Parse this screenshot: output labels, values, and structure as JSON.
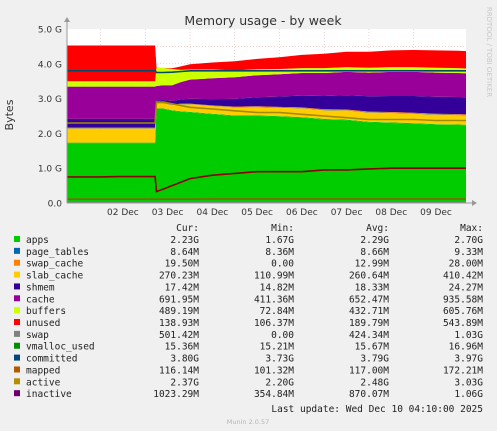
{
  "chart_data": {
    "type": "area",
    "title": "Memory usage - by week",
    "ylabel": "Bytes",
    "side_label": "RRDTOOL / TOBI OETIKER",
    "y_ticks": [
      "0.0",
      "1.0 G",
      "2.0 G",
      "3.0 G",
      "4.0 G",
      "5.0 G"
    ],
    "ylim": [
      0,
      5.0
    ],
    "y_unit": "G",
    "x_ticks": [
      "02 Dec",
      "03 Dec",
      "04 Dec",
      "05 Dec",
      "06 Dec",
      "07 Dec",
      "08 Dec",
      "09 Dec"
    ],
    "x_tick_days": [
      2,
      3,
      4,
      5,
      6,
      7,
      8,
      9
    ],
    "x_range_days": [
      1.25,
      10.17
    ],
    "grid": true,
    "x_days": [
      1.25,
      1.6,
      2.0,
      2.4,
      2.8,
      3.1,
      3.22,
      3.25,
      3.4,
      3.6,
      3.8,
      4.0,
      4.5,
      5.0,
      5.5,
      6.0,
      6.5,
      7.0,
      7.5,
      8.0,
      8.5,
      9.0,
      9.5,
      10.0,
      10.17
    ],
    "stack_order": [
      "apps",
      "shmem",
      "slab_cache",
      "page_tables",
      "swap_cache",
      "buffers",
      "cache",
      "unused",
      "swap"
    ],
    "series": [
      {
        "name": "apps",
        "color": "#00cc00",
        "stacked": true,
        "values": [
          1.72,
          1.72,
          1.72,
          1.72,
          1.72,
          1.72,
          1.72,
          2.7,
          2.7,
          2.65,
          2.62,
          2.6,
          2.55,
          2.5,
          2.5,
          2.48,
          2.45,
          2.4,
          2.38,
          2.32,
          2.3,
          2.28,
          2.25,
          2.24,
          2.23
        ]
      },
      {
        "name": "shmem",
        "color": "#00c000",
        "stacked": true,
        "values": [
          0.017,
          0.017,
          0.017,
          0.017,
          0.017,
          0.017,
          0.017,
          0.017,
          0.017,
          0.017,
          0.017,
          0.017,
          0.017,
          0.017,
          0.017,
          0.017,
          0.017,
          0.017,
          0.017,
          0.017,
          0.017,
          0.017,
          0.017,
          0.017,
          0.017
        ]
      },
      {
        "name": "slab_cache",
        "color": "#ffcc00",
        "stacked": true,
        "values": [
          0.4,
          0.4,
          0.4,
          0.4,
          0.4,
          0.4,
          0.4,
          0.15,
          0.15,
          0.15,
          0.2,
          0.22,
          0.22,
          0.23,
          0.24,
          0.24,
          0.25,
          0.25,
          0.26,
          0.26,
          0.27,
          0.27,
          0.27,
          0.27,
          0.27
        ]
      },
      {
        "name": "page_tables",
        "color": "#0066b3",
        "stacked": true,
        "values": [
          0.009,
          0.009,
          0.009,
          0.009,
          0.009,
          0.009,
          0.009,
          0.009,
          0.009,
          0.009,
          0.009,
          0.009,
          0.009,
          0.009,
          0.009,
          0.009,
          0.009,
          0.009,
          0.009,
          0.009,
          0.009,
          0.009,
          0.009,
          0.009,
          0.009
        ]
      },
      {
        "name": "swap_cache",
        "color": "#ff8000",
        "stacked": true,
        "values": [
          0.02,
          0.02,
          0.02,
          0.02,
          0.02,
          0.02,
          0.02,
          0.005,
          0.005,
          0.005,
          0.01,
          0.01,
          0.01,
          0.015,
          0.015,
          0.015,
          0.02,
          0.02,
          0.02,
          0.02,
          0.02,
          0.02,
          0.02,
          0.02,
          0.02
        ]
      },
      {
        "name": "buffers",
        "color": "#330099",
        "stacked": true,
        "values": [
          0.25,
          0.25,
          0.25,
          0.25,
          0.25,
          0.25,
          0.25,
          0.07,
          0.08,
          0.1,
          0.12,
          0.14,
          0.18,
          0.22,
          0.26,
          0.3,
          0.34,
          0.38,
          0.41,
          0.44,
          0.46,
          0.48,
          0.49,
          0.49,
          0.49
        ]
      },
      {
        "name": "cache",
        "color": "#990099",
        "stacked": true,
        "values": [
          0.93,
          0.93,
          0.93,
          0.93,
          0.93,
          0.93,
          0.93,
          0.41,
          0.42,
          0.45,
          0.5,
          0.55,
          0.6,
          0.62,
          0.63,
          0.64,
          0.65,
          0.66,
          0.67,
          0.68,
          0.69,
          0.69,
          0.69,
          0.69,
          0.69
        ]
      },
      {
        "name": "unused",
        "color": "#ccff00",
        "stacked": true,
        "values": [
          0.15,
          0.15,
          0.15,
          0.15,
          0.15,
          0.15,
          0.15,
          0.54,
          0.5,
          0.47,
          0.35,
          0.29,
          0.25,
          0.2,
          0.17,
          0.15,
          0.14,
          0.14,
          0.14,
          0.14,
          0.14,
          0.14,
          0.14,
          0.14,
          0.14
        ]
      },
      {
        "name": "swap",
        "color": "#ff0000",
        "stacked": true,
        "values": [
          1.03,
          1.03,
          1.03,
          1.03,
          1.03,
          1.03,
          1.03,
          0.0,
          0.0,
          0.02,
          0.1,
          0.15,
          0.2,
          0.26,
          0.3,
          0.34,
          0.38,
          0.41,
          0.44,
          0.46,
          0.48,
          0.49,
          0.5,
          0.5,
          0.5
        ]
      },
      {
        "name": "vmalloc_used",
        "color": "#808080",
        "stacked": false,
        "values": [
          0.015,
          0.015,
          0.015,
          0.015,
          0.015,
          0.015,
          0.015,
          0.015,
          0.015,
          0.015,
          0.015,
          0.015,
          0.015,
          0.015,
          0.015,
          0.015,
          0.015,
          0.015,
          0.015,
          0.015,
          0.015,
          0.015,
          0.015,
          0.015,
          0.015
        ]
      },
      {
        "name": "committed",
        "color": "#004b69",
        "stacked": false,
        "values": [
          3.8,
          3.8,
          3.8,
          3.8,
          3.8,
          3.8,
          3.8,
          3.75,
          3.75,
          3.76,
          3.78,
          3.8,
          3.8,
          3.8,
          3.8,
          3.8,
          3.8,
          3.8,
          3.8,
          3.8,
          3.8,
          3.8,
          3.8,
          3.8,
          3.8
        ]
      },
      {
        "name": "mapped",
        "color": "#8f5d00",
        "stacked": false,
        "values": [
          0.11,
          0.11,
          0.11,
          0.11,
          0.11,
          0.11,
          0.11,
          0.11,
          0.11,
          0.11,
          0.11,
          0.11,
          0.115,
          0.115,
          0.115,
          0.115,
          0.115,
          0.115,
          0.115,
          0.115,
          0.115,
          0.115,
          0.115,
          0.115,
          0.116
        ]
      },
      {
        "name": "active",
        "color": "#a38a00",
        "stacked": false,
        "values": [
          2.3,
          2.3,
          2.3,
          2.3,
          2.3,
          2.3,
          2.3,
          2.9,
          2.9,
          2.85,
          2.8,
          2.75,
          2.7,
          2.65,
          2.6,
          2.6,
          2.55,
          2.5,
          2.45,
          2.4,
          2.4,
          2.4,
          2.37,
          2.37,
          2.37
        ]
      },
      {
        "name": "inactive",
        "color": "#8b0000",
        "stacked": false,
        "values": [
          0.75,
          0.75,
          0.75,
          0.76,
          0.76,
          0.76,
          0.76,
          0.33,
          0.4,
          0.5,
          0.6,
          0.7,
          0.8,
          0.85,
          0.9,
          0.9,
          0.9,
          0.95,
          0.95,
          0.98,
          1.0,
          1.0,
          1.0,
          1.0,
          1.0
        ]
      }
    ]
  },
  "legend": {
    "headers": [
      "Cur:",
      "Min:",
      "Avg:",
      "Max:"
    ],
    "rows": [
      {
        "name": "apps",
        "color": "#00cc00",
        "cur": "2.23G",
        "min": "1.67G",
        "avg": "2.29G",
        "max": "2.70G"
      },
      {
        "name": "page_tables",
        "color": "#0066b3",
        "cur": "8.64M",
        "min": "8.36M",
        "avg": "8.66M",
        "max": "9.33M"
      },
      {
        "name": "swap_cache",
        "color": "#ff8000",
        "cur": "19.50M",
        "min": "0.00",
        "avg": "12.99M",
        "max": "28.00M"
      },
      {
        "name": "slab_cache",
        "color": "#ffcc00",
        "cur": "270.23M",
        "min": "110.99M",
        "avg": "260.64M",
        "max": "410.42M"
      },
      {
        "name": "shmem",
        "color": "#330099",
        "cur": "17.42M",
        "min": "14.82M",
        "avg": "18.33M",
        "max": "24.27M"
      },
      {
        "name": "cache",
        "color": "#990099",
        "cur": "691.95M",
        "min": "411.36M",
        "avg": "652.47M",
        "max": "935.58M"
      },
      {
        "name": "buffers",
        "color": "#ccff00",
        "cur": "489.19M",
        "min": "72.84M",
        "avg": "432.71M",
        "max": "605.76M"
      },
      {
        "name": "unused",
        "color": "#ff0000",
        "cur": "138.93M",
        "min": "106.37M",
        "avg": "189.79M",
        "max": "543.89M"
      },
      {
        "name": "swap",
        "color": "#808080",
        "cur": "501.42M",
        "min": "0.00",
        "avg": "424.34M",
        "max": "1.03G"
      },
      {
        "name": "vmalloc_used",
        "color": "#008f00",
        "cur": "15.36M",
        "min": "15.21M",
        "avg": "15.67M",
        "max": "16.96M"
      },
      {
        "name": "committed",
        "color": "#00487d",
        "cur": "3.80G",
        "min": "3.73G",
        "avg": "3.79G",
        "max": "3.97G"
      },
      {
        "name": "mapped",
        "color": "#b35a00",
        "cur": "116.14M",
        "min": "101.32M",
        "avg": "117.00M",
        "max": "172.21M"
      },
      {
        "name": "active",
        "color": "#b38f00",
        "cur": "2.37G",
        "min": "2.20G",
        "avg": "2.48G",
        "max": "3.03G"
      },
      {
        "name": "inactive",
        "color": "#6b006b",
        "cur": "1023.29M",
        "min": "354.84M",
        "avg": "870.07M",
        "max": "1.06G"
      }
    ]
  },
  "last_update": "Last update: Wed Dec 10 04:10:00 2025",
  "footer": "Munin 2.0.57"
}
